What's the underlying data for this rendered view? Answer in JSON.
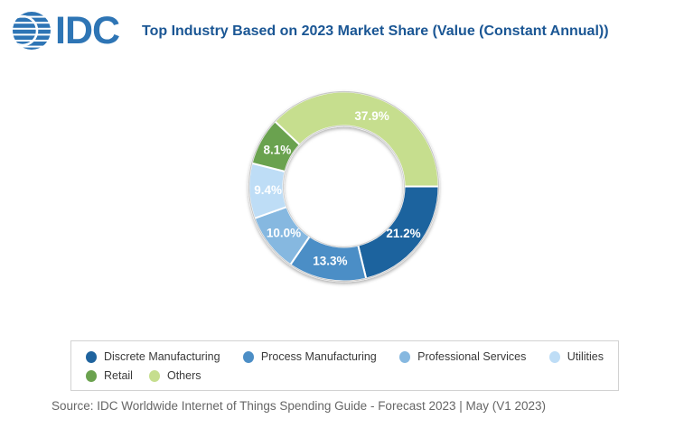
{
  "header": {
    "logo_text": "IDC",
    "title": "Top Industry Based on 2023 Market Share (Value (Constant Annual))"
  },
  "chart_data": {
    "type": "pie",
    "subtype": "donut",
    "title": "Top Industry Based on 2023 Market Share (Value (Constant Annual))",
    "start_angle_deg_from_north": 90,
    "direction": "clockwise",
    "categories": [
      "Discrete Manufacturing",
      "Process Manufacturing",
      "Professional Services",
      "Utilities",
      "Retail",
      "Others"
    ],
    "values": [
      21.2,
      13.3,
      10.0,
      9.4,
      8.1,
      37.9
    ],
    "labels": [
      "21.2%",
      "13.3%",
      "10.0%",
      "9.4%",
      "8.1%",
      "37.9%"
    ],
    "colors": [
      "#1F639E",
      "#4C8EC6",
      "#86B8E0",
      "#BEDDF6",
      "#6BA24F",
      "#C6DE8E"
    ],
    "label_color": "#ffffff",
    "legend_position": "bottom"
  },
  "colors": {
    "logo_blue": "#2E75B5",
    "title_blue": "#1A5694",
    "legend_border": "#d2d2d2",
    "legend_text": "#3A3A3A",
    "source_text": "#666666",
    "rim_gray": "#BFBFBF"
  },
  "source": {
    "text": "Source: IDC Worldwide Internet of Things Spending Guide - Forecast 2023 | May (V1 2023)"
  }
}
